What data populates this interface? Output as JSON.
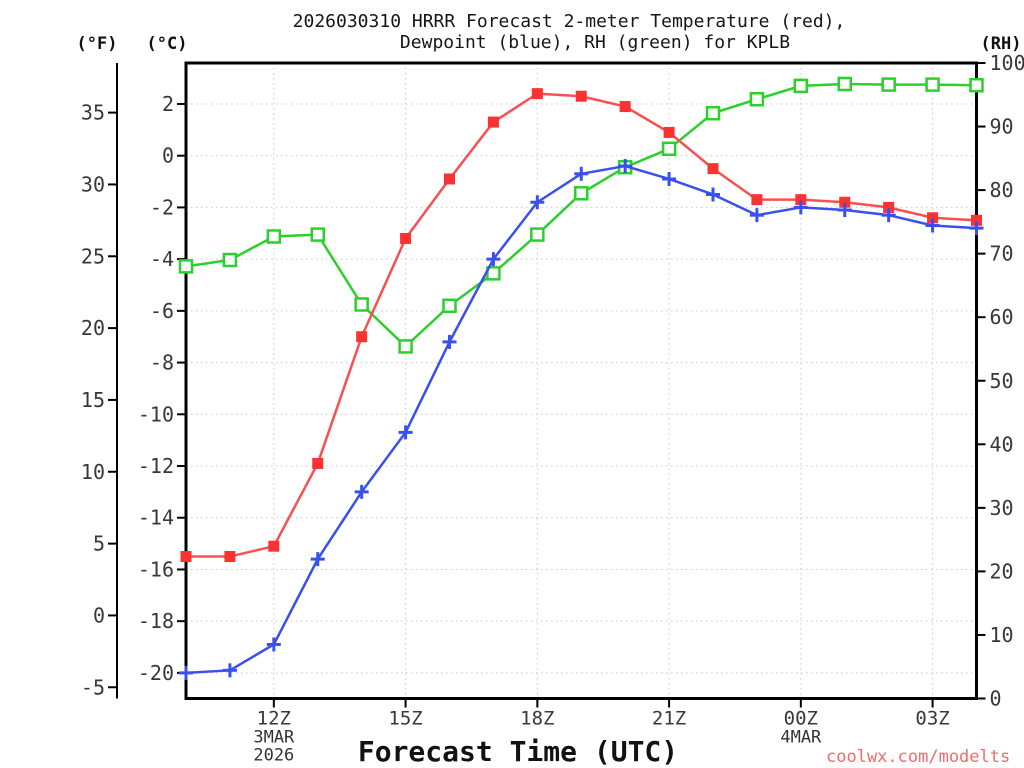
{
  "title": {
    "line1": "2026030310 HRRR Forecast 2-meter Temperature (red),",
    "line2": "Dewpoint (blue), RH (green) for KPLB"
  },
  "axes": {
    "fahrenheit": {
      "header": "(°F)",
      "ticks": [
        35,
        30,
        25,
        20,
        15,
        10,
        5,
        0,
        -5
      ]
    },
    "celsius": {
      "header": "(°C)",
      "ticks": [
        2,
        0,
        -2,
        -4,
        -6,
        -8,
        -10,
        -12,
        -14,
        -16,
        -18,
        -20
      ]
    },
    "rh": {
      "header": "(RH)",
      "ticks": [
        100,
        90,
        80,
        70,
        60,
        50,
        40,
        30,
        20,
        10,
        0
      ]
    },
    "time": {
      "label": "Forecast Time (UTC)",
      "ticks": [
        {
          "hour": 12,
          "label": "12Z"
        },
        {
          "hour": 15,
          "label": "15Z"
        },
        {
          "hour": 18,
          "label": "18Z"
        },
        {
          "hour": 21,
          "label": "21Z"
        },
        {
          "hour": 24,
          "label": "00Z"
        },
        {
          "hour": 27,
          "label": "03Z"
        }
      ],
      "date_annotations": [
        {
          "hour": 12,
          "lines": [
            "3MAR",
            "2026"
          ]
        },
        {
          "hour": 24,
          "lines": [
            "4MAR"
          ]
        }
      ]
    }
  },
  "chart_data": {
    "type": "line",
    "station": "KPLB",
    "model_run": "2026030310 HRRR",
    "x_hours_utc": [
      "10Z",
      "11Z",
      "12Z",
      "13Z",
      "14Z",
      "15Z",
      "16Z",
      "17Z",
      "18Z",
      "19Z",
      "20Z",
      "21Z",
      "22Z",
      "23Z",
      "00Z",
      "01Z",
      "02Z",
      "03Z",
      "04Z"
    ],
    "series": [
      {
        "name": "2-meter Temperature",
        "unit": "degC",
        "axis": "celsius",
        "color": "#fa3232",
        "line_color": "#f85050",
        "marker": "filled-square",
        "values": [
          -15.5,
          -15.5,
          -15.1,
          -11.9,
          -7.0,
          -3.2,
          -0.9,
          1.3,
          2.4,
          2.3,
          1.9,
          0.9,
          -0.5,
          -1.7,
          -1.7,
          -1.8,
          -2.0,
          -2.4,
          -2.5
        ]
      },
      {
        "name": "Dewpoint",
        "unit": "degC",
        "axis": "celsius",
        "color": "#3a50ee",
        "line_color": "#3a50ee",
        "marker": "plus",
        "values": [
          -20.0,
          -19.9,
          -18.9,
          -15.6,
          -13.0,
          -10.7,
          -7.2,
          -4.0,
          -1.8,
          -0.7,
          -0.4,
          -0.9,
          -1.5,
          -2.3,
          -2.0,
          -2.1,
          -2.3,
          -2.7,
          -2.8
        ]
      },
      {
        "name": "Relative Humidity",
        "unit": "%",
        "axis": "rh",
        "color": "#2bd02b",
        "line_color": "#2bd02b",
        "marker": "open-square",
        "values": [
          68,
          69,
          72.7,
          73,
          62,
          55.4,
          61.8,
          66.9,
          73,
          79.5,
          83.6,
          86.5,
          92.1,
          94.3,
          96.4,
          96.7,
          96.6,
          96.6,
          96.5
        ]
      }
    ],
    "rh_axis_range": [
      0,
      100
    ],
    "celsius_axis_range_approx": [
      -21.0,
      3.6
    ],
    "grid": "dotted gridlines at 3-hour intervals and 2degC intervals",
    "legend_position": "none (colors named in title)"
  },
  "watermark": {
    "text": "coolwx.com/modelts",
    "color": "#f56a6a"
  }
}
